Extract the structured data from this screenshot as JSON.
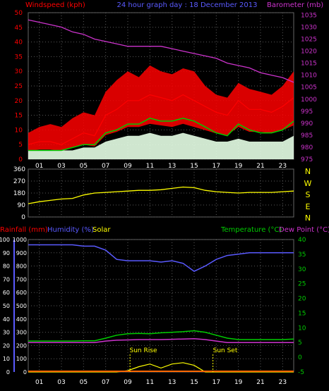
{
  "header": {
    "left_label": "Windspeed (kph)",
    "center_title": "24 hour graph day : 18 December 2013",
    "right_label": "Barometer (mb)"
  },
  "compass_labels": [
    "N",
    "W",
    "S",
    "E",
    "N"
  ],
  "bottom_header": {
    "rainfall_label": "Rainfall (mm)",
    "humidity_label": "Humidity (%)",
    "solar_label": "Solar",
    "temperature_label": "Temperature (°C)",
    "dewpoint_label": "Dew Point (°C)"
  },
  "annotations": {
    "sun_rise": "Sun Rise",
    "sun_set": "Sun Set"
  },
  "colors": {
    "background": "#000000",
    "grid": "#5a5a5a",
    "wind_speed": "#ff0000",
    "wind_gust_band": "#ff0000",
    "wind_avg": "#00cc00",
    "wind_min": "#e6ffe6",
    "barometer": "#cc33cc",
    "wind_direction": "#ffff00",
    "humidity": "#5a5aff",
    "temperature": "#00cc00",
    "dew_point": "#cc33cc",
    "solar": "#ffff00",
    "rainfall": "#ff6600",
    "axis_left": "#ff0000",
    "axis_right_pressure": "#cc33cc",
    "axis_right_temp": "#00cc00",
    "axis_humidity": "#5a5aff"
  },
  "chart_data": [
    {
      "type": "line",
      "name_hint": "wind-and-barometer",
      "x_tick_labels": [
        "01",
        "03",
        "05",
        "07",
        "09",
        "11",
        "13",
        "15",
        "17",
        "19",
        "21",
        "23"
      ],
      "x_ticks_hours": [
        1,
        3,
        5,
        7,
        9,
        11,
        13,
        15,
        17,
        19,
        21,
        23
      ],
      "x_range_hours": [
        0,
        24
      ],
      "y_left_ticks": [
        0,
        5,
        10,
        15,
        20,
        25,
        30,
        35,
        40,
        45,
        50
      ],
      "ylim_left": [
        0,
        50
      ],
      "y_right_ticks": [
        975,
        980,
        985,
        990,
        995,
        1000,
        1005,
        1010,
        1015,
        1020,
        1025,
        1030,
        1035
      ],
      "ylim_right": [
        975,
        1036
      ],
      "x": [
        0,
        1,
        2,
        3,
        4,
        5,
        6,
        7,
        8,
        9,
        10,
        11,
        12,
        13,
        14,
        15,
        16,
        17,
        18,
        19,
        20,
        21,
        22,
        23,
        24
      ],
      "series": [
        {
          "key": "wind_speed",
          "axis": "left",
          "values": [
            5,
            6,
            6,
            5,
            7,
            9,
            8,
            15,
            17,
            20,
            20,
            22,
            21,
            20,
            22,
            20,
            18,
            16,
            15,
            20,
            17,
            17,
            16,
            18,
            21
          ]
        },
        {
          "key": "wind_speed_max",
          "axis": "left",
          "values": [
            9,
            11,
            12,
            11,
            14,
            16,
            15,
            23,
            27,
            30,
            28,
            32,
            30,
            29,
            31,
            30,
            25,
            22,
            21,
            26,
            24,
            23,
            22,
            25,
            30
          ]
        },
        {
          "key": "wind_avg",
          "axis": "left",
          "values": [
            3,
            3,
            3,
            3,
            4,
            5,
            5,
            9,
            10,
            12,
            12,
            14,
            13,
            13,
            14,
            13,
            11,
            9,
            8,
            12,
            10,
            9,
            9,
            10,
            13
          ]
        },
        {
          "key": "wind_min",
          "axis": "left",
          "values": [
            1,
            1,
            1,
            1,
            1,
            2,
            2,
            4,
            5,
            6,
            6,
            7,
            6,
            6,
            7,
            6,
            5,
            4,
            4,
            5,
            4,
            4,
            4,
            4,
            6
          ]
        },
        {
          "key": "barometer",
          "axis": "right",
          "values": [
            1033,
            1032,
            1031,
            1030,
            1028,
            1027,
            1025,
            1024,
            1023,
            1022,
            1022,
            1022,
            1022,
            1021,
            1020,
            1019,
            1018,
            1017,
            1015,
            1014,
            1013,
            1011,
            1010,
            1009,
            1007
          ]
        }
      ]
    },
    {
      "type": "line",
      "name_hint": "wind-direction",
      "x_tick_labels": [
        "01",
        "03",
        "05",
        "07",
        "09",
        "11",
        "13",
        "15",
        "17",
        "19",
        "21",
        "23"
      ],
      "y_ticks": [
        0,
        90,
        180,
        270,
        360
      ],
      "ylim": [
        0,
        360
      ],
      "x": [
        0,
        1,
        2,
        3,
        4,
        5,
        6,
        7,
        8,
        9,
        10,
        11,
        12,
        13,
        14,
        15,
        16,
        17,
        18,
        19,
        20,
        21,
        22,
        23,
        24
      ],
      "series": [
        {
          "key": "wind_direction",
          "values": [
            100,
            115,
            125,
            135,
            140,
            165,
            180,
            185,
            190,
            195,
            200,
            200,
            205,
            215,
            225,
            220,
            200,
            190,
            185,
            180,
            185,
            185,
            185,
            190,
            195
          ]
        }
      ]
    },
    {
      "type": "line",
      "name_hint": "rain-humidity-solar-temperature",
      "x_tick_labels": [
        "01",
        "03",
        "05",
        "07",
        "09",
        "11",
        "13",
        "15",
        "17",
        "19",
        "21",
        "23"
      ],
      "y_humidity_ticks": [
        0,
        10,
        20,
        30,
        40,
        50,
        60,
        70,
        80,
        90,
        100
      ],
      "ylim_humidity": [
        0,
        100
      ],
      "y_solar_ticks": [
        0,
        100,
        200,
        300,
        400,
        500,
        600,
        700,
        800,
        900,
        1000
      ],
      "ylim_solar": [
        0,
        1000
      ],
      "y_temp_ticks": [
        -5,
        0,
        5,
        10,
        15,
        20,
        25,
        30,
        35,
        40
      ],
      "ylim_temp": [
        -5,
        40
      ],
      "x": [
        0,
        1,
        2,
        3,
        4,
        5,
        6,
        7,
        8,
        9,
        10,
        11,
        12,
        13,
        14,
        15,
        16,
        17,
        18,
        19,
        20,
        21,
        22,
        23,
        24
      ],
      "series": [
        {
          "key": "humidity",
          "axis": "humidity",
          "values": [
            96,
            96,
            96,
            96,
            96,
            95,
            95,
            92,
            85,
            84,
            84,
            84,
            83,
            84,
            82,
            76,
            80,
            85,
            88,
            89,
            90,
            90,
            90,
            90,
            90
          ]
        },
        {
          "key": "temperature",
          "axis": "temp",
          "values": [
            5.5,
            5.5,
            5.5,
            5.5,
            5.5,
            5.6,
            5.6,
            6.5,
            7.5,
            8.0,
            8.1,
            8.0,
            8.3,
            8.5,
            8.7,
            9.0,
            8.5,
            7.5,
            6.5,
            6.0,
            6.0,
            6.0,
            6.0,
            6.0,
            6.2
          ]
        },
        {
          "key": "dew_point",
          "axis": "temp",
          "values": [
            5.0,
            5.0,
            5.0,
            5.0,
            5.0,
            5.0,
            5.0,
            5.5,
            5.8,
            5.9,
            6.0,
            6.0,
            6.0,
            6.1,
            6.2,
            6.3,
            6.0,
            5.5,
            5.0,
            5.0,
            5.0,
            5.0,
            5.0,
            5.0,
            5.0
          ]
        },
        {
          "key": "solar",
          "axis": "solar",
          "values": [
            0,
            0,
            0,
            0,
            0,
            0,
            0,
            0,
            0,
            10,
            40,
            60,
            30,
            60,
            70,
            50,
            0,
            0,
            0,
            0,
            0,
            0,
            0,
            0,
            0
          ]
        }
      ],
      "sun_rise_hour": 9.2,
      "sun_set_hour": 16.7
    }
  ]
}
